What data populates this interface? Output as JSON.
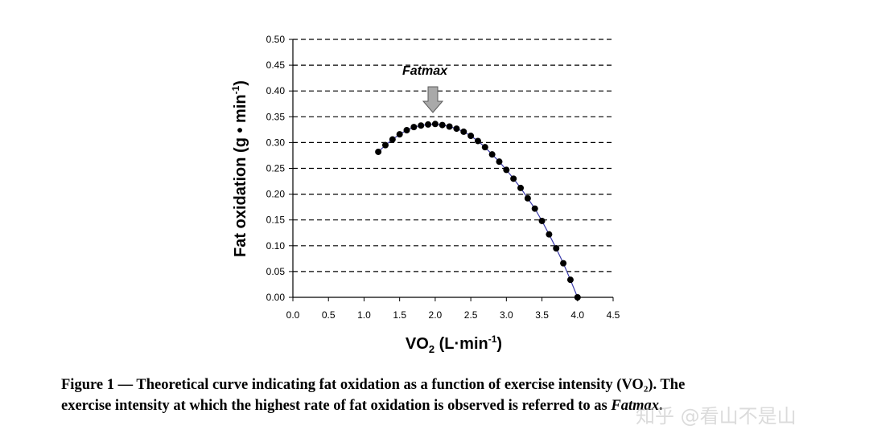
{
  "chart_data": {
    "type": "scatter",
    "xlabel_main": "VO",
    "xlabel_sub": "2",
    "xlabel_rest": " (L",
    "xlabel_dot": "·",
    "xlabel_min": "min",
    "xlabel_sup": "-1",
    "xlabel_close": ")",
    "ylabel_main": "Fat oxidation (g • min",
    "ylabel_sup": "-1",
    "ylabel_close": ")",
    "xlim": [
      0.0,
      4.5
    ],
    "ylim": [
      0.0,
      0.5
    ],
    "x_ticks": [
      "0.0",
      "0.5",
      "1.0",
      "1.5",
      "2.0",
      "2.5",
      "3.0",
      "3.5",
      "4.0",
      "4.5"
    ],
    "y_ticks": [
      "0.00",
      "0.05",
      "0.10",
      "0.15",
      "0.20",
      "0.25",
      "0.30",
      "0.35",
      "0.40",
      "0.45",
      "0.50"
    ],
    "grid": "horizontal dashed",
    "annotation": {
      "text": "Fatmax",
      "x": 2.0,
      "y": 0.335
    },
    "series": [
      {
        "points": [
          [
            1.2,
            0.282
          ],
          [
            1.3,
            0.295
          ],
          [
            1.4,
            0.306
          ],
          [
            1.5,
            0.316
          ],
          [
            1.6,
            0.324
          ],
          [
            1.7,
            0.33
          ],
          [
            1.8,
            0.333
          ],
          [
            1.9,
            0.335
          ],
          [
            2.0,
            0.336
          ],
          [
            2.1,
            0.334
          ],
          [
            2.2,
            0.331
          ],
          [
            2.3,
            0.327
          ],
          [
            2.4,
            0.321
          ],
          [
            2.5,
            0.313
          ],
          [
            2.6,
            0.303
          ],
          [
            2.7,
            0.291
          ],
          [
            2.8,
            0.277
          ],
          [
            2.9,
            0.263
          ],
          [
            3.0,
            0.247
          ],
          [
            3.1,
            0.23
          ],
          [
            3.2,
            0.212
          ],
          [
            3.3,
            0.192
          ],
          [
            3.4,
            0.172
          ],
          [
            3.5,
            0.148
          ],
          [
            3.6,
            0.122
          ],
          [
            3.7,
            0.095
          ],
          [
            3.8,
            0.066
          ],
          [
            3.9,
            0.034
          ],
          [
            4.0,
            0.0
          ]
        ],
        "marker_color": "#000000",
        "line_color": "#3a3aa8"
      }
    ]
  },
  "caption": {
    "line1": "Figure 1 — Theoretical curve indicating fat oxidation as a function of exercise intensity (VO₂). The",
    "line2_text": "exercise intensity at which the highest rate of fat oxidation is observed is referred to as ",
    "line2_italic": "Fatmax",
    "line2_end": "."
  },
  "watermark": "知乎 @看山不是山"
}
